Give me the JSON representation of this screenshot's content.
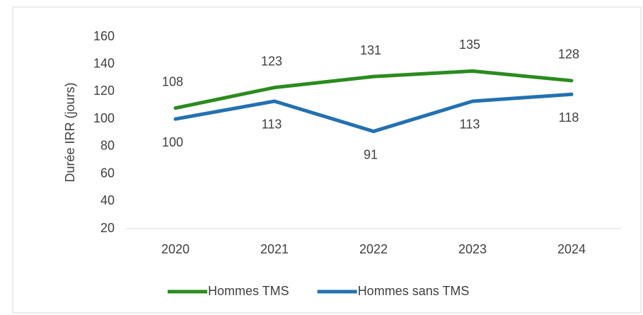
{
  "chart_data": {
    "type": "line",
    "y_label": "Durée IRR (jours)",
    "categories": [
      "2020",
      "2021",
      "2022",
      "2023",
      "2024"
    ],
    "series": [
      {
        "name": "Hommes TMS",
        "color": "#2a8c1e",
        "values": [
          108,
          123,
          131,
          135,
          128
        ]
      },
      {
        "name": "Hommes sans TMS",
        "color": "#2271b1",
        "values": [
          100,
          113,
          91,
          113,
          118
        ]
      }
    ],
    "ylim": [
      20,
      160
    ],
    "yticks": [
      20,
      40,
      60,
      80,
      100,
      120,
      140,
      160
    ],
    "legend": "bottom"
  }
}
